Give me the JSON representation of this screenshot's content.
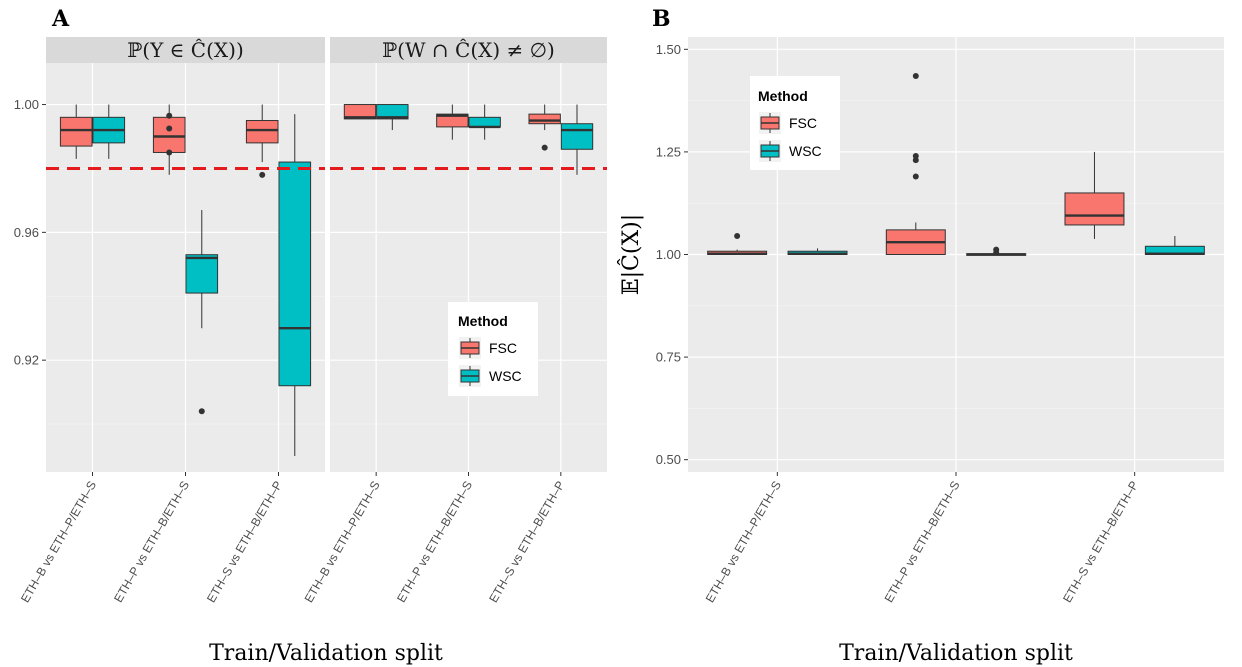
{
  "chart_data": [
    {
      "panel": "A",
      "type": "box",
      "facets": [
        "ℙ(Y ∈ Ĉ(X))",
        "ℙ(W ∩ Ĉ(X) ≠ ∅)"
      ],
      "xlabel": "Train/Validation split",
      "ylabel": "",
      "ylim": [
        0.885,
        1.013
      ],
      "yticks": [
        0.92,
        0.96,
        1.0
      ],
      "ytick_labels": [
        "0.92",
        "0.96",
        "1.00"
      ],
      "reference_line": {
        "y": 0.98,
        "color": "#e41a1c",
        "style": "dashed"
      },
      "categories_by_facet": [
        [
          "ETH–B vs ETH–P/ETH–S",
          "ETH–P vs ETH–B/ETH–S",
          "ETH–S vs ETH–B/ETH–P"
        ],
        [
          "ETH–B vs ETH–P/ETH–S",
          "ETH–P vs ETH–B/ETH–S",
          "ETH–S vs ETH–B/ETH–P"
        ]
      ],
      "legend": {
        "title": "Method",
        "entries": [
          "FSC",
          "WSC"
        ],
        "position": "inside-bottom-right"
      },
      "series": [
        {
          "name": "FSC",
          "color": "#f8766d",
          "facets": [
            [
              {
                "lower_whisker": 0.983,
                "q1": 0.987,
                "median": 0.992,
                "q3": 0.996,
                "upper_whisker": 1.0,
                "outliers": []
              },
              {
                "lower_whisker": 0.978,
                "q1": 0.985,
                "median": 0.99,
                "q3": 0.996,
                "upper_whisker": 1.0,
                "outliers": [
                  0.985,
                  0.9925,
                  0.9965
                ]
              },
              {
                "lower_whisker": 0.982,
                "q1": 0.988,
                "median": 0.992,
                "q3": 0.995,
                "upper_whisker": 1.0,
                "outliers": [
                  0.978
                ]
              }
            ],
            [
              {
                "lower_whisker": 0.9955,
                "q1": 0.9955,
                "median": 0.996,
                "q3": 1.0,
                "upper_whisker": 1.0,
                "outliers": []
              },
              {
                "lower_whisker": 0.989,
                "q1": 0.993,
                "median": 0.9965,
                "q3": 0.997,
                "upper_whisker": 1.0,
                "outliers": []
              },
              {
                "lower_whisker": 0.992,
                "q1": 0.994,
                "median": 0.995,
                "q3": 0.997,
                "upper_whisker": 1.0,
                "outliers": [
                  0.9865
                ]
              }
            ]
          ]
        },
        {
          "name": "WSC",
          "color": "#00bfc4",
          "facets": [
            [
              {
                "lower_whisker": 0.983,
                "q1": 0.988,
                "median": 0.992,
                "q3": 0.996,
                "upper_whisker": 1.0,
                "outliers": []
              },
              {
                "lower_whisker": 0.93,
                "q1": 0.941,
                "median": 0.952,
                "q3": 0.953,
                "upper_whisker": 0.967,
                "outliers": [
                  0.904
                ]
              },
              {
                "lower_whisker": 0.89,
                "q1": 0.912,
                "median": 0.93,
                "q3": 0.982,
                "upper_whisker": 0.997,
                "outliers": []
              }
            ],
            [
              {
                "lower_whisker": 0.992,
                "q1": 0.9955,
                "median": 0.996,
                "q3": 1.0,
                "upper_whisker": 1.0,
                "outliers": []
              },
              {
                "lower_whisker": 0.989,
                "q1": 0.993,
                "median": 0.993,
                "q3": 0.996,
                "upper_whisker": 1.0,
                "outliers": []
              },
              {
                "lower_whisker": 0.978,
                "q1": 0.986,
                "median": 0.992,
                "q3": 0.994,
                "upper_whisker": 1.0,
                "outliers": []
              }
            ]
          ]
        }
      ]
    },
    {
      "panel": "B",
      "type": "box",
      "xlabel": "Train/Validation split",
      "ylabel": "𝔼|Ĉ(X)|",
      "ylim": [
        0.47,
        1.53
      ],
      "yticks": [
        0.5,
        0.75,
        1.0,
        1.25,
        1.5
      ],
      "ytick_labels": [
        "0.50",
        "0.75",
        "1.00",
        "1.25",
        "1.50"
      ],
      "categories": [
        "ETH–B vs ETH–P/ETH–S",
        "ETH–P vs ETH–B/ETH–S",
        "ETH–S vs ETH–B/ETH–P"
      ],
      "legend": {
        "title": "Method",
        "entries": [
          "FSC",
          "WSC"
        ],
        "position": "inside-top-left"
      },
      "series": [
        {
          "name": "FSC",
          "color": "#f8766d",
          "values": [
            {
              "lower_whisker": 1.0,
              "q1": 1.0,
              "median": 1.002,
              "q3": 1.008,
              "upper_whisker": 1.012,
              "outliers": [
                1.045
              ]
            },
            {
              "lower_whisker": 1.0,
              "q1": 1.0,
              "median": 1.03,
              "q3": 1.06,
              "upper_whisker": 1.078,
              "outliers": [
                1.19,
                1.23,
                1.24,
                1.435
              ]
            },
            {
              "lower_whisker": 1.038,
              "q1": 1.072,
              "median": 1.095,
              "q3": 1.15,
              "upper_whisker": 1.25,
              "outliers": []
            }
          ]
        },
        {
          "name": "WSC",
          "color": "#00bfc4",
          "values": [
            {
              "lower_whisker": 1.0,
              "q1": 1.0,
              "median": 1.002,
              "q3": 1.008,
              "upper_whisker": 1.015,
              "outliers": []
            },
            {
              "lower_whisker": 0.998,
              "q1": 0.998,
              "median": 1.0,
              "q3": 1.002,
              "upper_whisker": 1.005,
              "outliers": [
                1.005,
                1.012
              ]
            },
            {
              "lower_whisker": 1.0,
              "q1": 1.0,
              "median": 1.002,
              "q3": 1.02,
              "upper_whisker": 1.045,
              "outliers": []
            }
          ]
        }
      ]
    }
  ],
  "panel_labels": [
    "A",
    "B"
  ]
}
